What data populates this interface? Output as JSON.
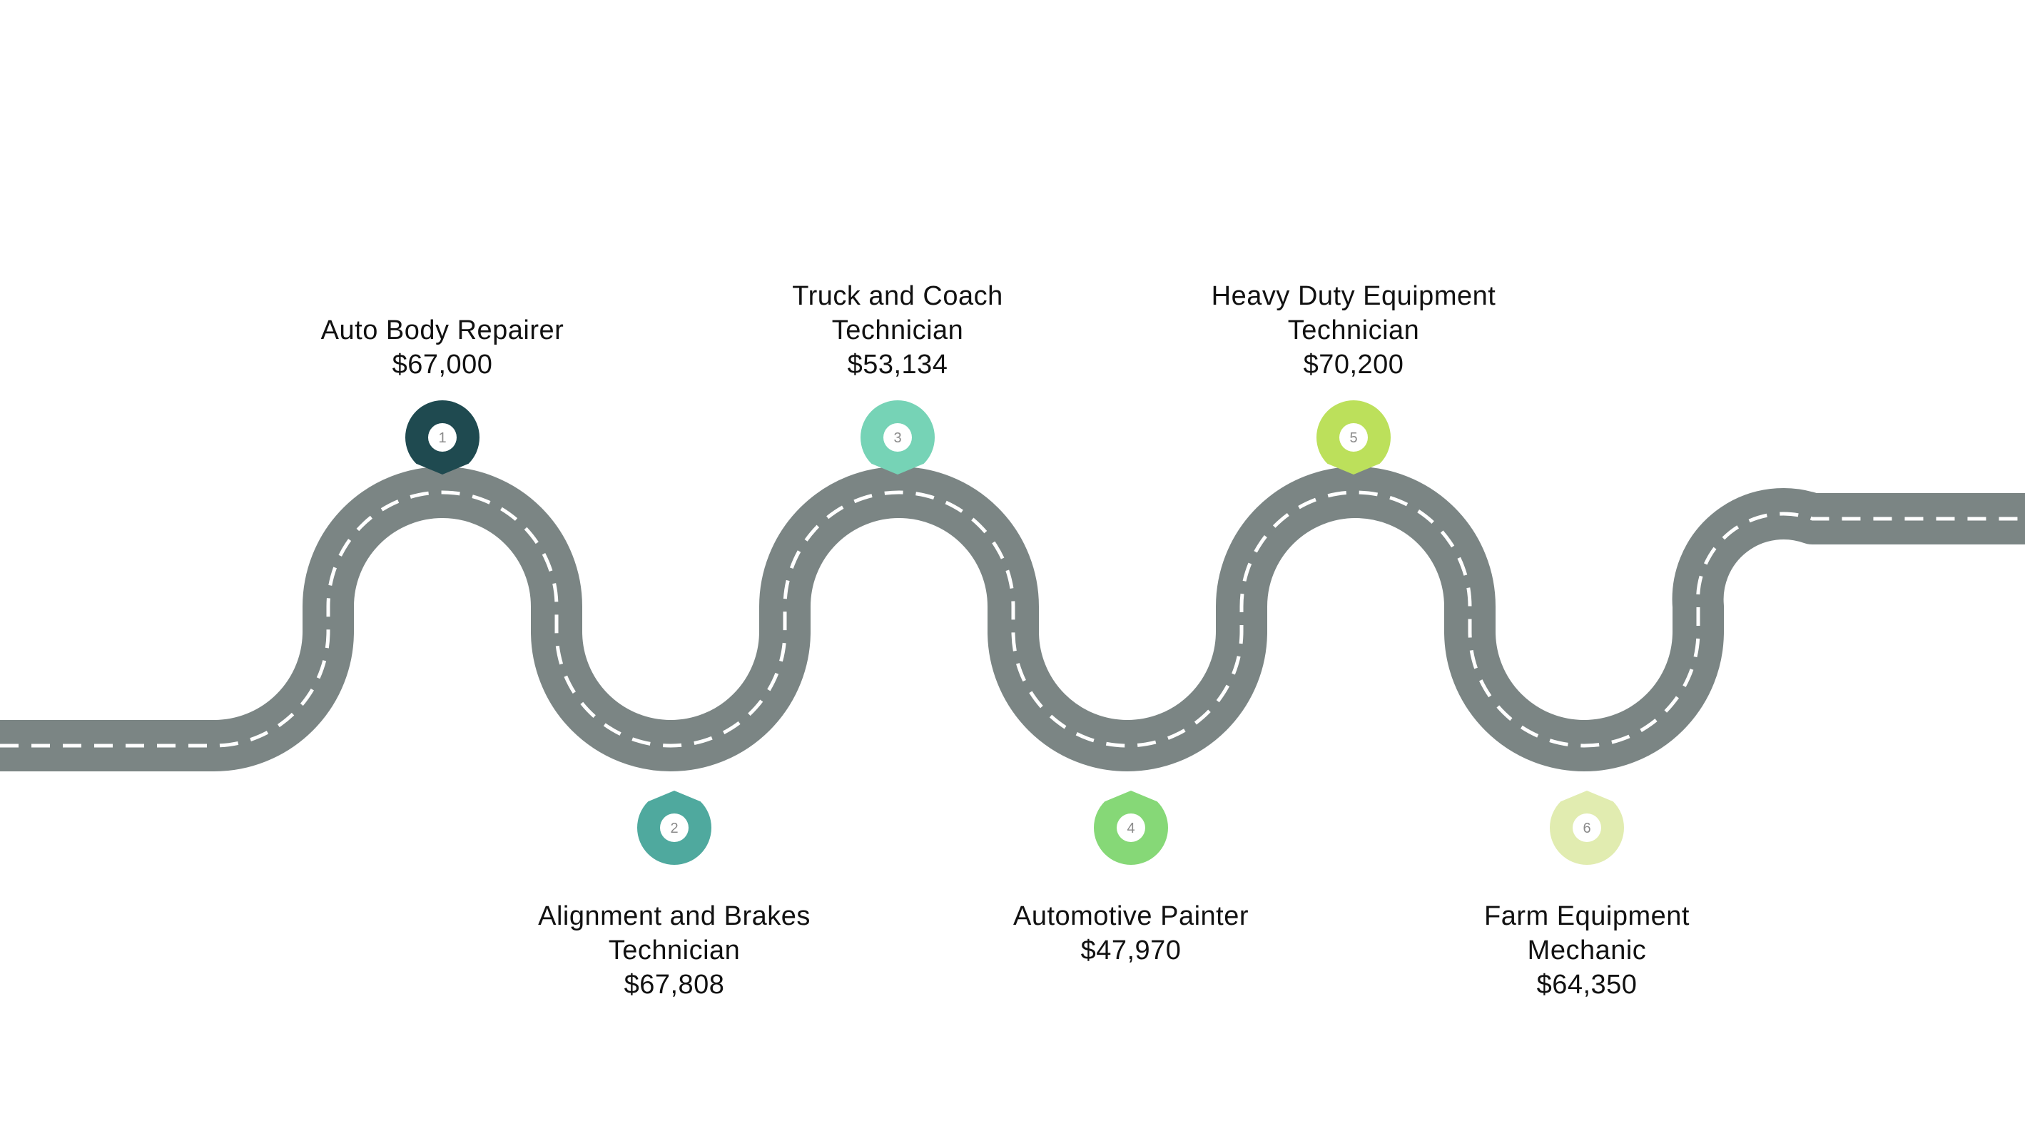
{
  "colors": {
    "background": "#ffffff",
    "road": "#7b8584",
    "lane_marking": "#ffffff",
    "pin_inner": "#ffffff",
    "pin_number": "#8a8a8a",
    "text": "#111111"
  },
  "stops": [
    {
      "number": "1",
      "title_lines": [
        "Auto Body Repairer"
      ],
      "salary": "$67,000",
      "color": "#1f4a50",
      "position": "above"
    },
    {
      "number": "2",
      "title_lines": [
        "Alignment and Brakes",
        "Technician"
      ],
      "salary": "$67,808",
      "color": "#4fa99e",
      "position": "below"
    },
    {
      "number": "3",
      "title_lines": [
        "Truck and Coach",
        "Technician"
      ],
      "salary": "$53,134",
      "color": "#76d3b6",
      "position": "above"
    },
    {
      "number": "4",
      "title_lines": [
        "Automotive Painter"
      ],
      "salary": "$47,970",
      "color": "#86d877",
      "position": "below"
    },
    {
      "number": "5",
      "title_lines": [
        "Heavy Duty Equipment",
        "Technician"
      ],
      "salary": "$70,200",
      "color": "#bce05b",
      "position": "above"
    },
    {
      "number": "6",
      "title_lines": [
        "Farm Equipment",
        "Mechanic"
      ],
      "salary": "$64,350",
      "color": "#e1ecb0",
      "position": "below"
    }
  ]
}
